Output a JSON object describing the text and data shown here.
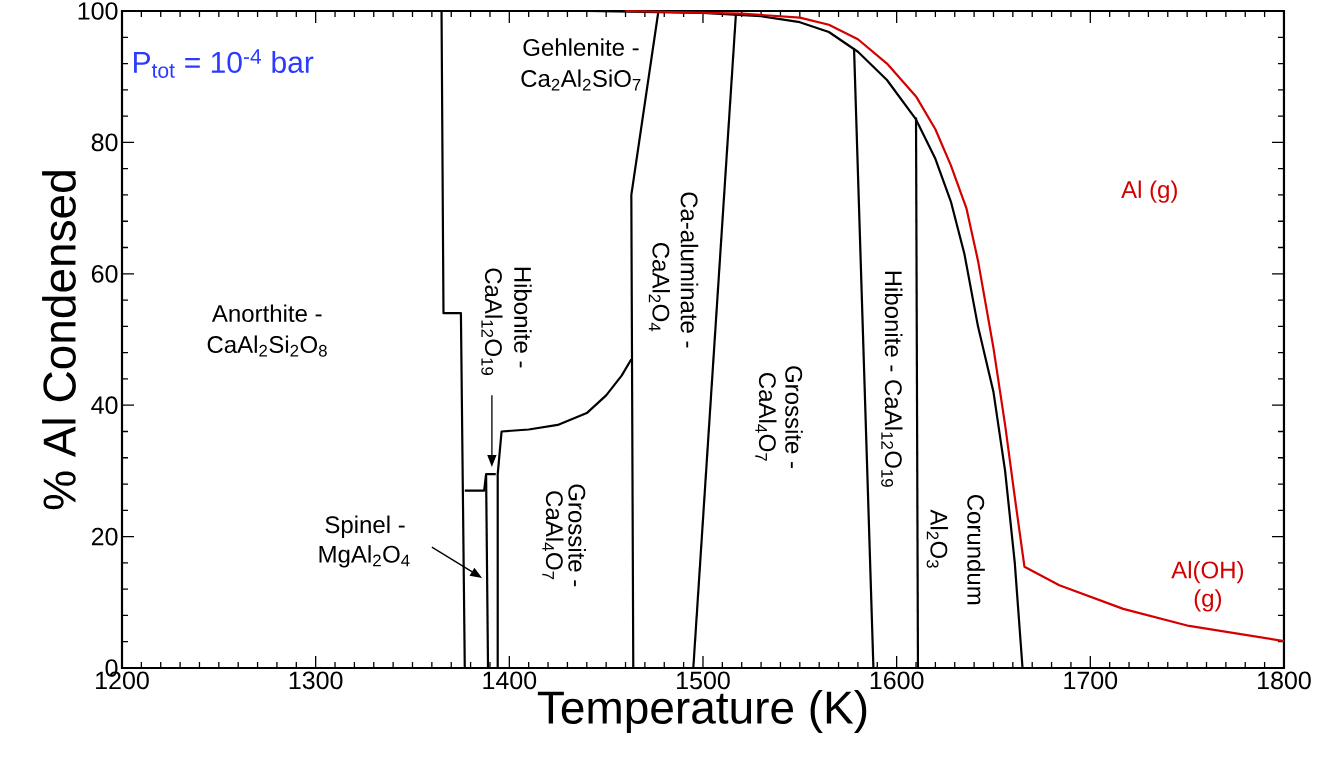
{
  "chart_data": {
    "type": "line",
    "xlabel": "Temperature (K)",
    "ylabel": "% Al Condensed",
    "xlim": [
      1200,
      1800
    ],
    "ylim": [
      0,
      100
    ],
    "xticks": [
      1200,
      1300,
      1400,
      1500,
      1600,
      1700,
      1800
    ],
    "yticks": [
      0,
      20,
      40,
      60,
      80,
      100
    ],
    "marker": "none",
    "line_style": "solid",
    "series": [
      {
        "color": "#000000",
        "x": [
          1365,
          1366,
          1375,
          1377
        ],
        "values": [
          100,
          54,
          54,
          0
        ]
      },
      {
        "color": "#000000",
        "x": [
          1377,
          1387,
          1388,
          1393
        ],
        "values": [
          27,
          27,
          29.5,
          29.5
        ]
      },
      {
        "color": "#000000",
        "x": [
          1388,
          1389
        ],
        "values": [
          29.5,
          0
        ]
      },
      {
        "color": "#000000",
        "x": [
          1394,
          1394,
          1396,
          1410,
          1425,
          1440,
          1450,
          1458,
          1463
        ],
        "values": [
          0,
          29.5,
          36,
          36.3,
          37,
          38.8,
          41.5,
          44.5,
          47
        ]
      },
      {
        "color": "#000000",
        "x": [
          1464,
          1463,
          1467,
          1472,
          1477
        ],
        "values": [
          0,
          72,
          80,
          90,
          100
        ]
      },
      {
        "color": "#000000",
        "x": [
          1495,
          1517
        ],
        "values": [
          0,
          99.5
        ]
      },
      {
        "color": "#000000",
        "x": [
          1578,
          1588
        ],
        "values": [
          94.3,
          0
        ]
      },
      {
        "color": "#000000",
        "x": [
          1610,
          1611
        ],
        "values": [
          83.8,
          0
        ]
      },
      {
        "color": "#000000",
        "x": [
          1440,
          1500,
          1530,
          1550,
          1565,
          1580,
          1595,
          1610,
          1620,
          1628,
          1635,
          1642,
          1650,
          1656,
          1661,
          1665
        ],
        "values": [
          100,
          99.7,
          99.2,
          98.3,
          96.8,
          93.8,
          89.5,
          83.5,
          77.5,
          71,
          63,
          52,
          42,
          30,
          16,
          0
        ]
      },
      {
        "color": "#d40000",
        "x": [
          1460,
          1520,
          1550,
          1565,
          1580,
          1595,
          1610,
          1620,
          1628,
          1636,
          1642,
          1650,
          1656,
          1661,
          1666,
          1684,
          1717,
          1751,
          1800
        ],
        "values": [
          100,
          99.6,
          99,
          97.9,
          95.7,
          92,
          87,
          82,
          76.5,
          70,
          62,
          48.7,
          37,
          26,
          15.4,
          12.6,
          9,
          6.4,
          4.1
        ]
      }
    ],
    "annotations": [
      "P$_{tot}$ = 10$^{-4}$ bar",
      "Gehlenite -",
      "Ca$_{2}$Al$_{2}$SiO$_{7}$",
      "Anorthite -",
      "CaAl$_{2}$Si$_{2}$O$_{8}$",
      "Hibonite -",
      "CaAl$_{12}$O$_{19}$",
      "Spinel -",
      "MgAl$_{2}$O$_{4}$",
      "Grossite -",
      "CaAl$_{4}$O$_{7}$",
      "Ca-aluminate -",
      "CaAl$_{2}$O$_{4}$",
      "Grossite -",
      "CaAl$_{4}$O$_{7}$",
      "Hibonite - CaAl$_{12}$O$_{19}$",
      "Corundum",
      "Al$_{2}$O$_{3}$",
      "Al (g)",
      "Al(OH)",
      "(g)"
    ]
  }
}
